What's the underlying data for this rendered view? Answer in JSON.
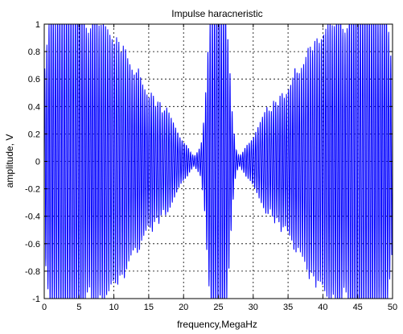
{
  "chart_data": {
    "type": "line",
    "title": "Impulse haracneristic",
    "xlabel": "frequency,MegaHz",
    "ylabel": "amplitude, V",
    "xlim": [
      0,
      50
    ],
    "ylim": [
      -1,
      1
    ],
    "xticks": [
      0,
      5,
      10,
      15,
      20,
      25,
      30,
      35,
      40,
      45,
      50
    ],
    "xtick_labels": [
      "0",
      "5",
      "10",
      "15",
      "20",
      "25",
      "30",
      "35",
      "40",
      "45",
      "50"
    ],
    "yticks": [
      -1,
      -0.8,
      -0.6,
      -0.4,
      -0.2,
      0,
      0.2,
      0.4,
      0.6,
      0.8,
      1
    ],
    "ytick_labels": [
      "-1",
      "-0.8",
      "-0.6",
      "-0.4",
      "-0.2",
      "0",
      "0.2",
      "0.4",
      "0.6",
      "0.8",
      "1"
    ],
    "grid": true,
    "series": [
      {
        "color": "#0000ff",
        "x": [
          0,
          0.5,
          1,
          1.5,
          2,
          2.5,
          3,
          3.5,
          4,
          4.5,
          5,
          5.5,
          6,
          6.5,
          7,
          7.5,
          8,
          8.5,
          9,
          9.5,
          10,
          10.5,
          11,
          11.5,
          12,
          12.5,
          13,
          13.5,
          14,
          14.5,
          15,
          15.5,
          16,
          16.5,
          17,
          17.5,
          18,
          18.5,
          19,
          19.5,
          20,
          20.5,
          21,
          21.5,
          22,
          22.5,
          23,
          23.5,
          24,
          24.5,
          25,
          25.5,
          26,
          26.5,
          27,
          27.5,
          28,
          28.5,
          29,
          29.5,
          30,
          30.5,
          31,
          31.5,
          32,
          32.5,
          33,
          33.5,
          34,
          34.5,
          35,
          35.5,
          36,
          36.5,
          37,
          37.5,
          38,
          38.5,
          39,
          39.5,
          40,
          40.5,
          41,
          41.5,
          42,
          42.5,
          43,
          43.5,
          44,
          44.5,
          45,
          45.5,
          46,
          46.5,
          47,
          47.5,
          48,
          48.5,
          49,
          49.5,
          50
        ],
        "envelope": [
          0.55,
          0.8,
          1.0,
          0.9,
          0.95,
          1.0,
          1.0,
          1.0,
          1.0,
          1.0,
          1.0,
          1.0,
          0.85,
          0.8,
          0.95,
          0.9,
          0.85,
          0.9,
          0.85,
          0.8,
          0.75,
          0.8,
          0.7,
          0.75,
          0.65,
          0.6,
          0.55,
          0.6,
          0.5,
          0.45,
          0.4,
          0.45,
          0.35,
          0.4,
          0.3,
          0.35,
          0.3,
          0.25,
          0.2,
          0.15,
          0.12,
          0.1,
          0.06,
          0.03,
          0.06,
          0.1,
          0.3,
          0.7,
          1.0,
          1.0,
          1.0,
          1.0,
          1.0,
          0.7,
          0.3,
          0.08,
          0.03,
          0.06,
          0.1,
          0.12,
          0.15,
          0.2,
          0.25,
          0.3,
          0.35,
          0.3,
          0.4,
          0.35,
          0.45,
          0.4,
          0.45,
          0.5,
          0.6,
          0.55,
          0.6,
          0.65,
          0.75,
          0.7,
          0.8,
          0.75,
          0.8,
          0.85,
          0.9,
          0.85,
          0.9,
          0.95,
          0.8,
          0.85,
          1.0,
          1.0,
          1.0,
          1.0,
          1.0,
          1.0,
          1.0,
          1.0,
          0.95,
          0.9,
          1.0,
          0.8,
          0.55
        ]
      }
    ]
  }
}
